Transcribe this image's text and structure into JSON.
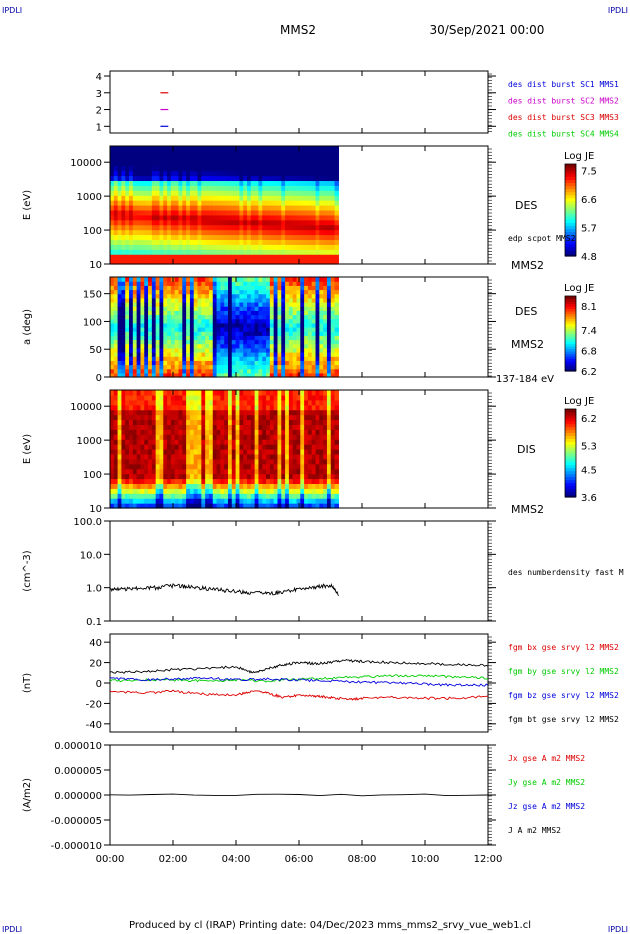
{
  "header": {
    "corner_left": "IPDLI",
    "corner_right": "IPDLI",
    "spacecraft": "MMS2",
    "date": "30/Sep/2021 00:00"
  },
  "footer": {
    "produced": "Produced by cl (IRAP)   Printing date: 04/Dec/2023   mms_mms2_srvy_vue_web1.cl",
    "corner_left": "IPDLI",
    "corner_right": "IPDLI"
  },
  "colors": {
    "red": "#dd0000",
    "green": "#00cc00",
    "blue": "#0000dd",
    "magenta": "#cc00cc",
    "black": "#000000"
  },
  "chart_data": [
    {
      "type": "line",
      "id": "burst",
      "yticks": [
        "1",
        "2",
        "3",
        "4"
      ],
      "ylim": [
        0.6,
        4.3
      ],
      "legend": [
        {
          "text": "des dist burst SC1 MMS1",
          "color": "#0000dd"
        },
        {
          "text": "des dist burst SC2 MMS2",
          "color": "#cc00cc"
        },
        {
          "text": "des dist burst SC3 MMS3",
          "color": "#dd0000"
        },
        {
          "text": "des dist burst SC4 MMS4",
          "color": "#00cc00"
        }
      ],
      "marks": [
        {
          "sc": 1,
          "t_start_h": 1.6,
          "t_end_h": 1.85,
          "color": "#0000dd"
        },
        {
          "sc": 2,
          "t_start_h": 1.6,
          "t_end_h": 1.85,
          "color": "#cc00cc"
        },
        {
          "sc": 3,
          "t_start_h": 1.6,
          "t_end_h": 1.85,
          "color": "#dd0000"
        }
      ]
    },
    {
      "type": "heatmap",
      "id": "des_energy",
      "ylabel": "E (eV)",
      "yticks": [
        "10",
        "100",
        "1000",
        "10000"
      ],
      "scale": "log",
      "ylim": [
        10,
        30000
      ],
      "data_end_h": 7.25,
      "colorbar": {
        "title": "Log JE",
        "ticks": [
          "7.5",
          "6.6",
          "5.7",
          "4.8"
        ],
        "range": [
          4.8,
          7.7
        ]
      },
      "labels": [
        "DES",
        "edp scpot MMS2",
        "MMS2"
      ]
    },
    {
      "type": "heatmap",
      "id": "des_pitch",
      "ylabel": "a (deg)",
      "yticks": [
        "0",
        "50",
        "100",
        "150"
      ],
      "ylim": [
        0,
        180
      ],
      "data_end_h": 7.25,
      "colorbar": {
        "title": "Log JE",
        "ticks": [
          "8.1",
          "7.4",
          "6.8",
          "6.2"
        ],
        "range": [
          6.2,
          8.4
        ]
      },
      "labels": [
        "DES",
        "MMS2",
        "137-184 eV"
      ]
    },
    {
      "type": "heatmap",
      "id": "dis_energy",
      "ylabel": "E (eV)",
      "yticks": [
        "10",
        "100",
        "1000",
        "10000"
      ],
      "scale": "log",
      "ylim": [
        10,
        30000
      ],
      "data_end_h": 7.25,
      "colorbar": {
        "title": "Log JE",
        "ticks": [
          "6.2",
          "5.3",
          "4.5",
          "3.6"
        ],
        "range": [
          3.6,
          6.5
        ]
      },
      "labels": [
        "DIS",
        "MMS2"
      ]
    },
    {
      "type": "line",
      "id": "density",
      "ylabel": "(cm^-3)",
      "yticks": [
        "0.1",
        "1.0",
        "10.0",
        "100.0"
      ],
      "scale": "log",
      "ylim": [
        0.1,
        100
      ],
      "legend": [
        {
          "text": "des numberdensity fast M",
          "color": "#000000"
        }
      ],
      "series": [
        {
          "name": "des numberdensity fast M",
          "color": "#000000",
          "t": [
            0.0,
            0.5,
            1.0,
            1.5,
            2.0,
            2.5,
            3.0,
            3.5,
            4.0,
            4.5,
            5.0,
            5.5,
            6.0,
            6.5,
            7.0,
            7.25
          ],
          "values": [
            0.85,
            0.9,
            0.95,
            1.0,
            1.15,
            1.05,
            0.95,
            0.85,
            0.75,
            0.7,
            0.65,
            0.75,
            0.9,
            1.0,
            1.2,
            0.65
          ]
        }
      ]
    },
    {
      "type": "line",
      "id": "fgm",
      "ylabel": "(nT)",
      "yticks": [
        "-40",
        "-20",
        "0",
        "20",
        "40"
      ],
      "ylim": [
        -48,
        48
      ],
      "legend": [
        {
          "text": "fgm bx gse srvy l2 MMS2",
          "color": "#dd0000"
        },
        {
          "text": "fgm by gse srvy l2 MMS2",
          "color": "#00cc00"
        },
        {
          "text": "fgm bz gse srvy l2 MMS2",
          "color": "#0000dd"
        },
        {
          "text": "fgm bt gse srvy l2 MMS2",
          "color": "#000000"
        }
      ],
      "series": [
        {
          "name": "fgm bx gse srvy l2 MMS2",
          "color": "#dd0000",
          "t": [
            0,
            1,
            2,
            3,
            4,
            4.5,
            5,
            5.5,
            6,
            6.5,
            7,
            7.5,
            8,
            9,
            10,
            11,
            12
          ],
          "values": [
            -8,
            -10,
            -8,
            -11,
            -12,
            -8,
            -10,
            -14,
            -12,
            -13,
            -14,
            -16,
            -15,
            -14,
            -15,
            -15,
            -13
          ]
        },
        {
          "name": "fgm by gse srvy l2 MMS2",
          "color": "#00cc00",
          "t": [
            0,
            1,
            2,
            3,
            4,
            5,
            6,
            7,
            8,
            9,
            10,
            11,
            12
          ],
          "values": [
            2,
            3,
            3,
            2,
            3,
            2,
            4,
            5,
            6,
            7,
            7,
            6,
            5
          ]
        },
        {
          "name": "fgm bz gse srvy l2 MMS2",
          "color": "#0000dd",
          "t": [
            0,
            1,
            2,
            3,
            4,
            5,
            6,
            7,
            8,
            9,
            10,
            11,
            12
          ],
          "values": [
            5,
            3,
            4,
            5,
            3,
            4,
            3,
            2,
            1,
            0,
            -1,
            -2,
            -2
          ]
        },
        {
          "name": "fgm bt gse srvy l2 MMS2",
          "color": "#000000",
          "t": [
            0,
            1,
            2,
            3,
            4,
            4.5,
            5,
            5.5,
            6,
            6.5,
            7,
            7.5,
            8,
            9,
            10,
            11,
            12
          ],
          "values": [
            10,
            11,
            13,
            14,
            16,
            10,
            14,
            18,
            20,
            19,
            20,
            22,
            21,
            20,
            19,
            18,
            17
          ]
        }
      ]
    },
    {
      "type": "line",
      "id": "current",
      "ylabel": "(A/m2)",
      "yticks": [
        "-0.000010",
        "-0.000005",
        "0.000000",
        "0.000005",
        "0.000010"
      ],
      "ylim": [
        -1e-05,
        1e-05
      ],
      "legend": [
        {
          "text": "Jx gse A m2 MMS2",
          "color": "#dd0000"
        },
        {
          "text": "Jy gse A m2 MMS2",
          "color": "#00cc00"
        },
        {
          "text": "Jz gse A m2 MMS2",
          "color": "#0000dd"
        },
        {
          "text": "J A m2 MMS2",
          "color": "#000000"
        }
      ],
      "series": [
        {
          "name": "J A m2 MMS2",
          "color": "#000000",
          "t": [
            0,
            12
          ],
          "values": [
            0,
            0
          ]
        }
      ]
    }
  ],
  "xaxis": {
    "ticks": [
      "00:00",
      "02:00",
      "04:00",
      "06:00",
      "08:00",
      "10:00",
      "12:00"
    ],
    "range_h": [
      0,
      12
    ]
  }
}
